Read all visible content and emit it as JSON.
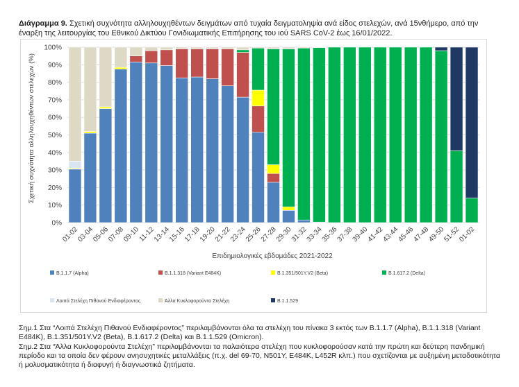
{
  "title_prefix": "Διάγραμμα 9.",
  "title_text": "Σχετική συχνότητα αλληλουχηθέντων δειγμάτων από τυχαία δειγματοληψία ανά είδος στελεχών, ανά 15νθήμερο, από την έναρξη της λειτουργίας του Εθνικού Δικτύου Γονιδιωματικής Επιτήρησης του ιού SARS CoV-2 έως 16/01/2022.",
  "chart_data": {
    "type": "bar",
    "stacked": true,
    "xlabel": "Επιδημιολογικές εβδομάδες 2021-2022",
    "ylabel": "Σχετική συχνότητα αλληλουχηθέντων στελεχών (%)",
    "ylim": [
      0,
      100
    ],
    "yticks": [
      "0%",
      "10%",
      "20%",
      "30%",
      "40%",
      "50%",
      "60%",
      "70%",
      "80%",
      "90%",
      "100%"
    ],
    "categories": [
      "01-02",
      "03-04",
      "05-06",
      "07-08",
      "09-10",
      "11-12",
      "13-14",
      "15-16",
      "17-18",
      "19-20",
      "21-22",
      "23-24",
      "25-26",
      "27-28",
      "29-30",
      "31-32",
      "33-34",
      "35-36",
      "37-38",
      "39-40",
      "41-42",
      "43-44",
      "45-46",
      "47-48",
      "49-50",
      "51-52",
      "01-02"
    ],
    "series": [
      {
        "name": "B.1.1.7 (Alpha)",
        "color": "#4f81bd",
        "values": [
          30.5,
          51,
          65,
          87.5,
          91.5,
          91,
          89.5,
          82.5,
          83,
          82,
          78,
          71.5,
          51.5,
          23,
          7,
          1.5,
          0.3,
          0,
          0,
          0,
          0,
          0,
          0,
          0,
          0,
          0,
          0
        ]
      },
      {
        "name": "B.1.1.318 (Variant E484K)",
        "color": "#c0504d",
        "values": [
          0,
          0,
          0,
          0,
          3.5,
          7,
          9,
          16.5,
          16,
          17,
          21,
          25.5,
          15,
          5,
          0,
          0,
          0,
          0,
          0,
          0,
          0,
          0,
          0,
          0,
          0,
          0,
          0
        ]
      },
      {
        "name": "B.1.351/501Y.V2 (Beta)",
        "color": "#ffff00",
        "values": [
          0.5,
          1,
          1,
          1,
          0,
          0,
          0,
          0,
          0,
          0,
          0,
          0,
          9,
          5,
          2,
          0,
          0,
          0,
          0,
          0,
          0,
          0,
          0,
          0,
          0,
          0,
          0
        ]
      },
      {
        "name": "B.1.617.2 (Delta)",
        "color": "#00b050",
        "values": [
          0,
          0,
          0,
          0,
          0,
          0,
          0,
          0,
          0,
          0,
          0,
          1.5,
          24,
          66,
          90,
          98,
          99.5,
          100,
          100,
          100,
          100,
          100,
          100,
          100,
          98,
          41,
          14
        ]
      },
      {
        "name": "Λοιπά Στελέχη Πιθανού Ενδιαφέροντος",
        "color": "#dbe5f1",
        "values": [
          4,
          0,
          0,
          0,
          0,
          0,
          0,
          0,
          0,
          0,
          0,
          0,
          0,
          0,
          0,
          0,
          0,
          0,
          0,
          0,
          0,
          0,
          0,
          0,
          0,
          0,
          0
        ]
      },
      {
        "name": "Άλλα Κυκλοφορούντα Στελέχη",
        "color": "#ddd9c4",
        "values": [
          65,
          48,
          34,
          11.5,
          5,
          2,
          1.5,
          1,
          1,
          1,
          1,
          1.5,
          0.5,
          1,
          1,
          0.5,
          0.2,
          0,
          0,
          0,
          0,
          0,
          0,
          0,
          0,
          0,
          0
        ]
      },
      {
        "name": "B.1.1.529",
        "color": "#1f3864",
        "values": [
          0,
          0,
          0,
          0,
          0,
          0,
          0,
          0,
          0,
          0,
          0,
          0,
          0,
          0,
          0,
          0,
          0,
          0,
          0,
          0,
          0,
          0,
          0,
          0,
          2,
          59,
          86
        ]
      }
    ],
    "legend_order": [
      0,
      1,
      2,
      3,
      4,
      5,
      6
    ]
  },
  "notes": [
    "Σημ.1 Στα “Λοιπά Στελέχη Πιθανού Ενδιαφέροντος” περιλαμβάνονται όλα τα στελέχη του πίνακα 3 εκτός των B.1.1.7 (Alpha), B.1.1.318 (Variant E484K), B.1.351/501Y.V2 (Beta), B.1.617.2 (Delta) και B.1.1.529 (Omicron).",
    "Σημ.2 Στα “Άλλα Κυκλοφορούντα Στελέχη” περιλαμβάνονται τα παλαιότερα στελέχη που κυκλοφορούσαν κατά την πρώτη και δεύτερη πανδημική περίοδο και τα οποία δεν φέρουν ανησυχητικές μεταλλάξεις (π.χ. del 69-70, N501Y, E484K, L452R κλπ.) που σχετίζονται με αυξημένη μεταδοτικότητα ή μολυσματικότητα ή διαφυγή ή διαγνωστικά ζητήματα."
  ]
}
